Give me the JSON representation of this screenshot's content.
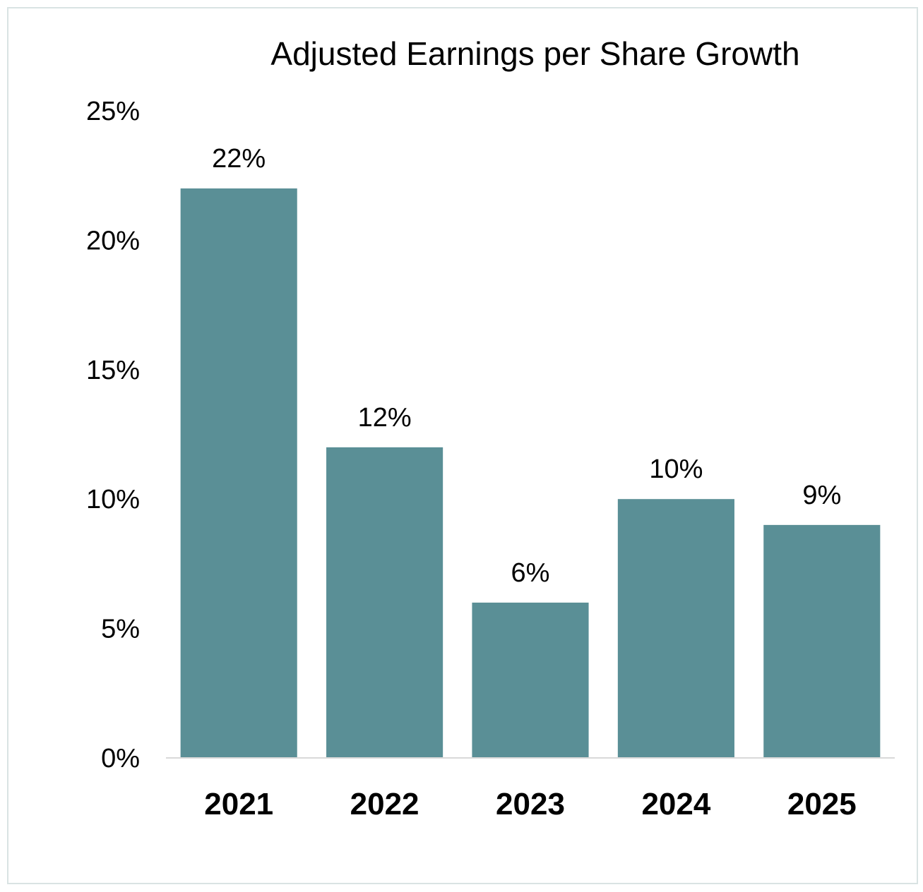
{
  "chart_data": {
    "type": "bar",
    "title": "Adjusted Earnings per Share Growth",
    "xlabel": "",
    "ylabel": "",
    "categories": [
      "2021",
      "2022",
      "2023",
      "2024",
      "2025"
    ],
    "values": [
      22,
      12,
      6,
      10,
      9
    ],
    "data_labels": [
      "22%",
      "12%",
      "6%",
      "10%",
      "9%"
    ],
    "y_ticks": [
      "0%",
      "5%",
      "10%",
      "15%",
      "20%",
      "25%"
    ],
    "ylim": [
      0,
      25
    ],
    "grid": false,
    "legend": "none",
    "bar_color": "#5a8f96"
  }
}
